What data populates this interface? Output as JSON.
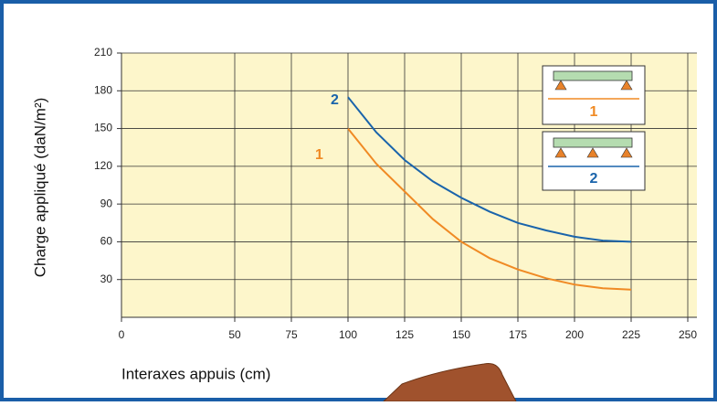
{
  "chart_data": {
    "type": "line",
    "x": [
      100,
      112.5,
      125,
      137.5,
      150,
      162.5,
      175,
      187.5,
      200,
      212.5,
      225
    ],
    "series": [
      {
        "name": "1",
        "color": "#f08a24",
        "values": [
          150,
          122,
          100,
          78,
          60,
          47,
          38,
          31,
          26,
          23,
          22
        ]
      },
      {
        "name": "2",
        "color": "#1a64ab",
        "values": [
          175,
          147,
          125,
          108,
          95,
          84,
          75,
          69,
          64,
          61,
          60
        ]
      }
    ],
    "xlabel": "Interaxes appuis  (cm)",
    "ylabel": "Charge appliqué  (daN/m²)",
    "xlim": [
      0,
      250
    ],
    "xticks": [
      0,
      50,
      75,
      100,
      125,
      150,
      175,
      200,
      225,
      250
    ],
    "ylim": [
      0,
      210
    ],
    "yticks": [
      30,
      60,
      90,
      120,
      150,
      180,
      210
    ],
    "grid": true
  }
}
